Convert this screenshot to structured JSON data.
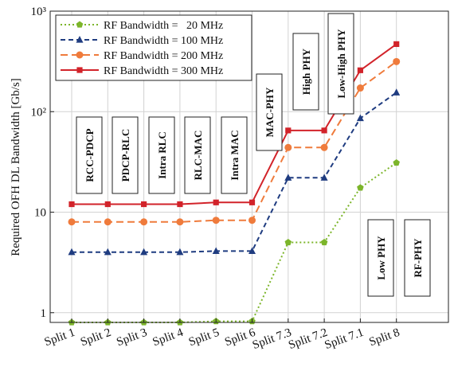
{
  "chart_data": {
    "type": "line",
    "ylabel": "Required OFH DL Bandwidth [Gb/s]",
    "xlabel": "",
    "y_scale": "log",
    "ylim": [
      0.8,
      1000
    ],
    "y_ticks": [
      1,
      10,
      100,
      1000
    ],
    "y_tick_labels": [
      "1",
      "10",
      "10²",
      "10³"
    ],
    "grid": true,
    "legend_position": "top-left",
    "categories": [
      "Split 1",
      "Split 2",
      "Split 3",
      "Split 4",
      "Split 5",
      "Split 6",
      "Split 7.3",
      "Split 7.2",
      "Split 7.1",
      "Split 8"
    ],
    "series": [
      {
        "name": "RF Bandwidth =   20 MHz",
        "color": "#7cb52a",
        "line_style": "dotted",
        "marker": "pentagon",
        "values": [
          0.8,
          0.8,
          0.8,
          0.8,
          0.82,
          0.82,
          5,
          5,
          17.5,
          31
        ]
      },
      {
        "name": "RF Bandwidth = 100 MHz",
        "color": "#1f3c80",
        "line_style": "dashed",
        "marker": "triangle",
        "values": [
          4,
          4,
          4,
          4,
          4.1,
          4.1,
          22,
          22,
          86,
          155
        ]
      },
      {
        "name": "RF Bandwidth = 200 MHz",
        "color": "#ef7b3c",
        "line_style": "dashed-long",
        "marker": "circle",
        "values": [
          8,
          8,
          8,
          8,
          8.3,
          8.3,
          44,
          44,
          172,
          315
        ]
      },
      {
        "name": "RF Bandwidth = 300 MHz",
        "color": "#d2232a",
        "line_style": "solid",
        "marker": "square",
        "values": [
          12,
          12,
          12,
          12,
          12.5,
          12.5,
          65,
          65,
          258,
          470
        ]
      }
    ],
    "split_annotations": [
      "RCC-PDCP",
      "PDCP-RLC",
      "Intra RLC",
      "RLC-MAC",
      "Intra MAC",
      "MAC-PHY",
      "High PHY",
      "Low-High PHY",
      "Low PHY",
      "RF-PHY"
    ]
  }
}
